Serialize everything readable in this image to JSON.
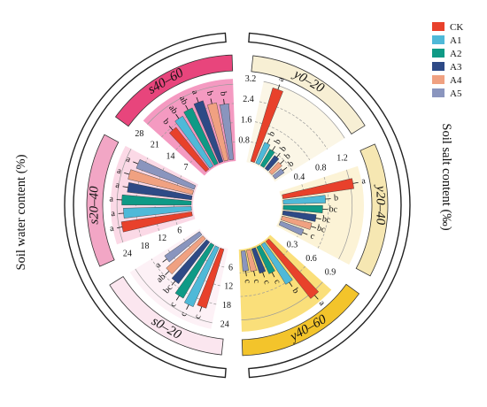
{
  "chart_data": {
    "type": "radial-bar",
    "series": [
      {
        "name": "CK",
        "color": "#e8412b"
      },
      {
        "name": "A1",
        "color": "#4fb9d8"
      },
      {
        "name": "A2",
        "color": "#0f9a86"
      },
      {
        "name": "A3",
        "color": "#2e4a86"
      },
      {
        "name": "A4",
        "color": "#f0a181"
      },
      {
        "name": "A5",
        "color": "#8a95be"
      }
    ],
    "axis_labels": {
      "right": "Soil salt content (‰)",
      "left": "Soil water content (%)"
    },
    "groups": [
      {
        "label": "y0–20",
        "side": "right",
        "ticks": [
          "0.8",
          "1.6",
          "2.4",
          "3.2"
        ],
        "max": 3.2,
        "values": [
          3.05,
          0.95,
          0.8,
          0.7,
          0.6,
          0.5
        ],
        "sig": [
          "a",
          "b",
          "b",
          "b",
          "b",
          "b"
        ],
        "fill": "#fbf6e6",
        "band": "#fbf3de",
        "label_box": "#f7efd4"
      },
      {
        "label": "y20–40",
        "side": "right",
        "ticks": [
          "0.4",
          "0.8",
          "1.2"
        ],
        "max": 1.4,
        "values": [
          1.25,
          0.75,
          0.7,
          0.6,
          0.55,
          0.45
        ],
        "sig": [
          "a",
          "b",
          "bc",
          "bc",
          "bc",
          "c"
        ],
        "fill": "#fcf3d6",
        "band": "#fbeec8",
        "label_box": "#f6e7b2"
      },
      {
        "label": "y40–60",
        "side": "right",
        "ticks": [
          "0.3",
          "0.6",
          "0.9"
        ],
        "max": 1.05,
        "values": [
          0.95,
          0.62,
          0.4,
          0.35,
          0.3,
          0.28
        ],
        "sig": [
          "a",
          "b",
          "c",
          "c",
          "c",
          "c"
        ],
        "fill": "#fadf7a",
        "band": "#f8e6a0",
        "label_box": "#f3c42b"
      },
      {
        "label": "s0–20",
        "side": "left",
        "ticks": [
          "6",
          "12",
          "18",
          "24"
        ],
        "max": 26,
        "values": [
          20,
          21,
          20,
          17,
          16,
          14
        ],
        "sig": [
          "c",
          "c",
          "c",
          "bc",
          "ab",
          "a"
        ],
        "fill": "#fdf1f6",
        "band": "#fdeef4",
        "label_box": "#fbe6ef"
      },
      {
        "label": "s20–40",
        "side": "left",
        "ticks": [
          "6",
          "12",
          "18",
          "24"
        ],
        "max": 26,
        "values": [
          23,
          22,
          22.5,
          21,
          21.5,
          20
        ],
        "sig": [
          "a",
          "a",
          "a",
          "a",
          "a",
          "a"
        ],
        "fill": "#fbd9e6",
        "band": "#f8c9dc",
        "label_box": "#f2a6c5"
      },
      {
        "label": "s40–60",
        "side": "left",
        "ticks": [
          "7",
          "14",
          "21",
          "28"
        ],
        "max": 30,
        "values": [
          20,
          22,
          23,
          24,
          22,
          21
        ],
        "sig": [
          "b",
          "ab",
          "ab",
          "a",
          "b",
          "b"
        ],
        "fill": "#f49ac1",
        "band": "#f087b4",
        "label_box": "#e8457c"
      }
    ]
  }
}
